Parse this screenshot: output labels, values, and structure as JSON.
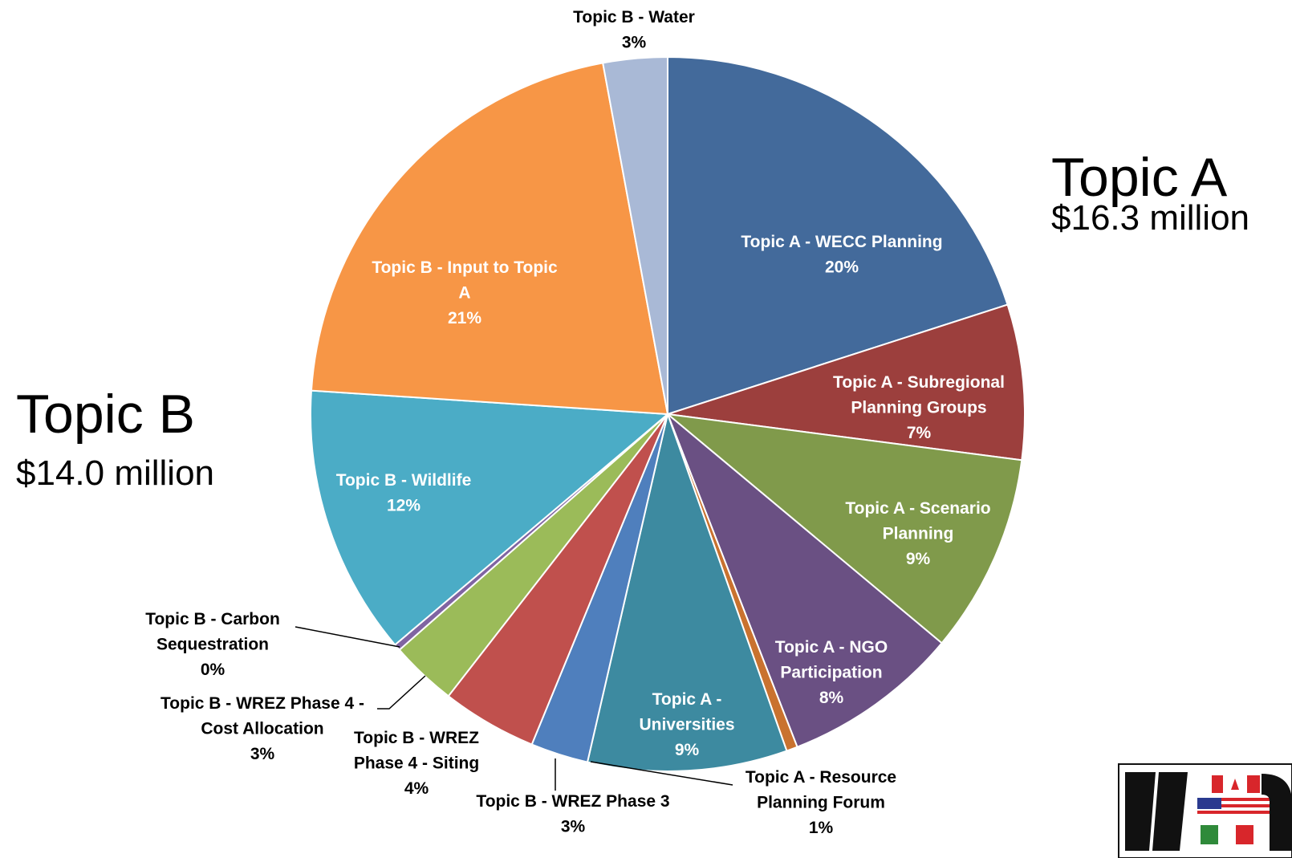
{
  "groups": {
    "topic_a": {
      "title": "Topic A",
      "amount": "$16.3 million"
    },
    "topic_b": {
      "title": "Topic B",
      "amount": "$14.0 million"
    }
  },
  "chart_data": {
    "type": "pie",
    "title": "",
    "slices": [
      {
        "label_lines": [
          "Topic A -  WECC Planning"
        ],
        "pct_label": "20%",
        "value": 20.0,
        "color": "#436a9b",
        "label_color": "#ffffff"
      },
      {
        "label_lines": [
          "Topic A -  Subregional",
          "Planning Groups"
        ],
        "pct_label": "7%",
        "value": 7.0,
        "color": "#9c3f3d",
        "label_color": "#ffffff"
      },
      {
        "label_lines": [
          "Topic A -  Scenario",
          "Planning"
        ],
        "pct_label": "9%",
        "value": 9.0,
        "color": "#809a4b",
        "label_color": "#ffffff"
      },
      {
        "label_lines": [
          "Topic A -  NGO",
          "Participation"
        ],
        "pct_label": "8%",
        "value": 8.0,
        "color": "#6a5083",
        "label_color": "#ffffff"
      },
      {
        "label_lines": [
          "Topic A -  Resource",
          "Planning Forum"
        ],
        "pct_label": "1%",
        "value": 0.5,
        "color": "#c9722f",
        "label_color": "#000000"
      },
      {
        "label_lines": [
          "Topic A -",
          "Universities"
        ],
        "pct_label": "9%",
        "value": 9.0,
        "color": "#3d8aa0",
        "label_color": "#ffffff"
      },
      {
        "label_lines": [
          "Topic B -  WREZ Phase 3"
        ],
        "pct_label": "3%",
        "value": 2.6,
        "color": "#4f7fbd",
        "label_color": "#000000"
      },
      {
        "label_lines": [
          "Topic B -  WREZ",
          "Phase 4 - Siting"
        ],
        "pct_label": "4%",
        "value": 4.3,
        "color": "#c0504d",
        "label_color": "#000000"
      },
      {
        "label_lines": [
          "Topic B -  WREZ Phase 4 -",
          "Cost Allocation"
        ],
        "pct_label": "3%",
        "value": 3.0,
        "color": "#9bbb59",
        "label_color": "#000000"
      },
      {
        "label_lines": [
          "Topic B -  Carbon",
          "Sequestration"
        ],
        "pct_label": "0%",
        "value": 0.3,
        "color": "#8064a2",
        "label_color": "#000000"
      },
      {
        "label_lines": [
          "Topic B -  Wildlife"
        ],
        "pct_label": "12%",
        "value": 12.2,
        "color": "#4bacc6",
        "label_color": "#ffffff"
      },
      {
        "label_lines": [
          "Topic B -  Input to Topic",
          "A"
        ],
        "pct_label": "21%",
        "value": 21.0,
        "color": "#f79646",
        "label_color": "#ffffff"
      },
      {
        "label_lines": [
          "Topic B -  Water"
        ],
        "pct_label": "3%",
        "value": 2.9,
        "color": "#a9b9d6",
        "label_color": "#000000"
      }
    ]
  },
  "logo": {
    "text": "WECC",
    "colors": {
      "dark": "#111111",
      "red": "#d8262b",
      "green": "#2f8a3a",
      "blue": "#2a3a8f"
    }
  }
}
